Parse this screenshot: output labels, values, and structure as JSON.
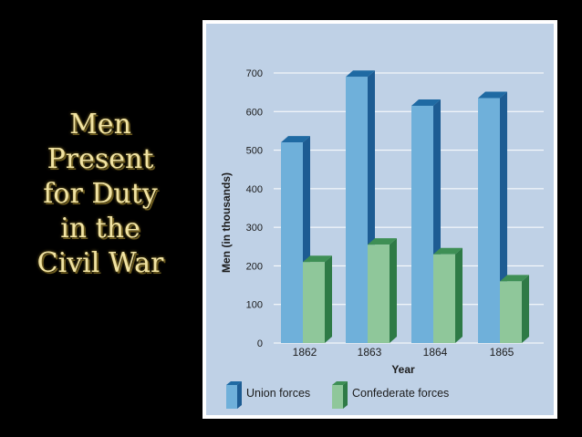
{
  "slide_title": [
    "Men",
    "Present",
    "for Duty",
    "in the",
    "Civil War"
  ],
  "colors": {
    "background": "#000000",
    "title": "#f1e3a2",
    "plot_bg": "#bfd1e6",
    "union_front": "#6fb0da",
    "union_side": "#1d5c93",
    "union_top": "#1f6aa3",
    "confederate_front": "#8fc79a",
    "confederate_side": "#2e7a46",
    "confederate_top": "#3e8f55"
  },
  "chart_data": {
    "type": "bar",
    "categories": [
      "1862",
      "1863",
      "1864",
      "1865"
    ],
    "series": [
      {
        "name": "Union forces",
        "values": [
          520,
          690,
          615,
          635
        ]
      },
      {
        "name": "Confederate forces",
        "values": [
          210,
          255,
          230,
          160
        ]
      }
    ],
    "xlabel": "Year",
    "ylabel": "Men (in thousands)",
    "ylim": [
      0,
      700
    ],
    "yticks": [
      "0",
      "100",
      "200",
      "300",
      "400",
      "500",
      "600",
      "700"
    ],
    "grid": true,
    "legend_position": "bottom"
  }
}
